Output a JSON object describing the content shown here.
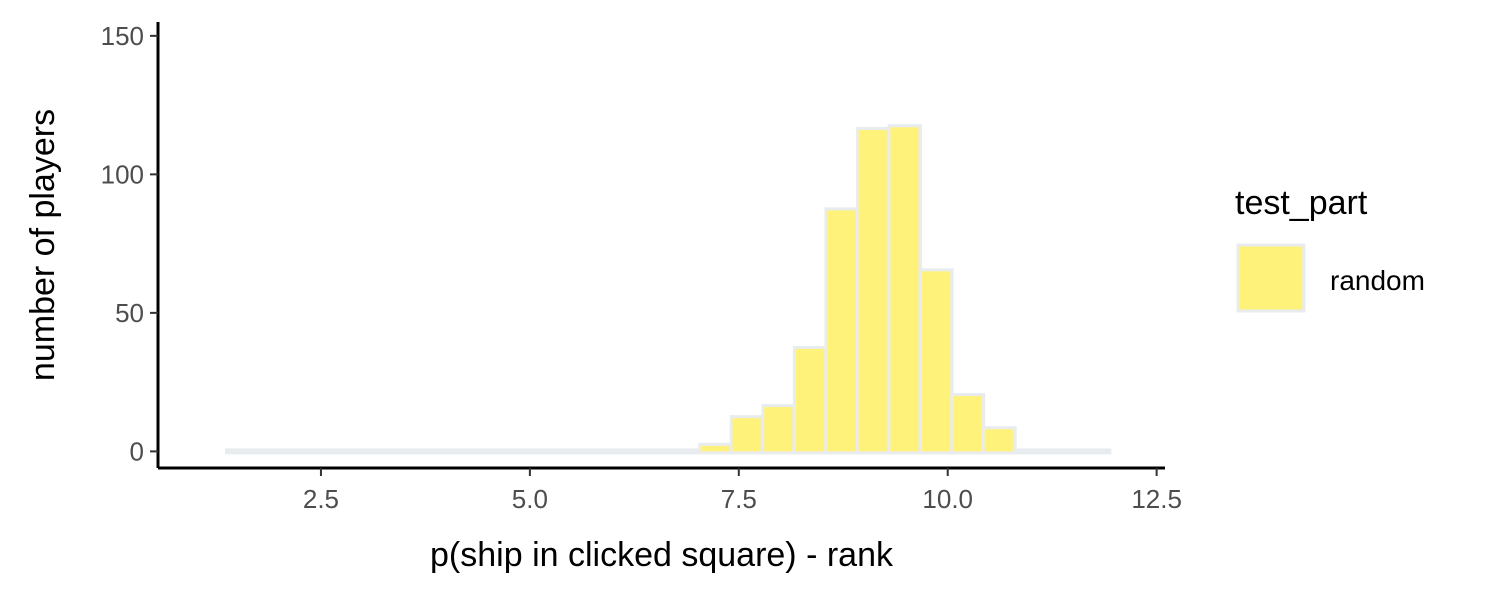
{
  "chart_data": {
    "type": "bar",
    "title": "",
    "xlabel": "p(ship in clicked square) - rank",
    "ylabel": "number of players",
    "xlim": [
      0.55,
      12.6
    ],
    "ylim": [
      -6,
      155
    ],
    "x_ticks": [
      2.5,
      5.0,
      7.5,
      10.0,
      12.5
    ],
    "x_tick_labels": [
      "2.5",
      "5.0",
      "7.5",
      "10.0",
      "12.5"
    ],
    "y_ticks": [
      0,
      50,
      100,
      150
    ],
    "y_tick_labels": [
      "0",
      "50",
      "100",
      "150"
    ],
    "bin_width": 0.3775,
    "bins_x_start": [
      1.37,
      1.7475,
      2.125,
      2.5025,
      2.88,
      3.2575,
      3.635,
      4.0125,
      4.39,
      4.7675,
      5.145,
      5.5225,
      5.9,
      6.2775,
      6.655,
      7.0325,
      7.41,
      7.7875,
      8.165,
      8.5425,
      8.92,
      9.2975,
      9.675,
      10.0525,
      10.43,
      10.8075,
      11.185,
      11.5625
    ],
    "values": [
      0,
      0,
      0,
      0,
      0,
      0,
      0,
      0,
      0,
      0,
      0,
      0,
      0,
      0,
      0,
      2,
      12,
      16,
      37,
      87,
      116,
      117,
      65,
      20,
      8,
      0,
      0,
      0
    ],
    "grid": false,
    "legend": {
      "title": "test_part",
      "position": "right",
      "entries": [
        {
          "label": "random",
          "color": "#fff27a"
        }
      ]
    },
    "colors": {
      "fill": "#fff27a",
      "stroke": "#e8ecef"
    }
  }
}
